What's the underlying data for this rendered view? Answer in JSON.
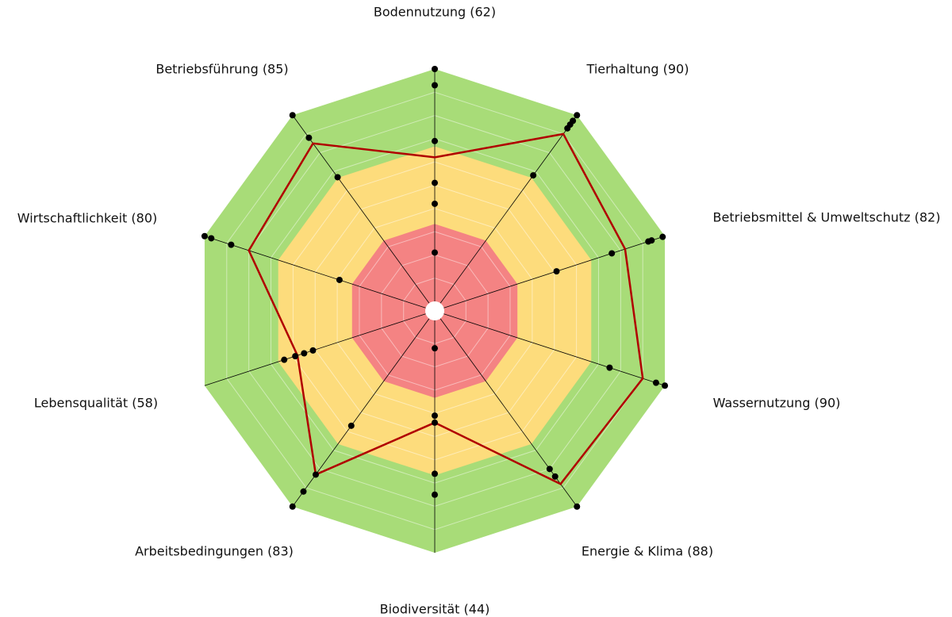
{
  "chart_data": {
    "type": "radar",
    "categories": [
      "Bodennutzung (62)",
      "Tierhaltung (90)",
      "Betriebsmittel & Umweltschutz (82)",
      "Wassernutzung (90)",
      "Energie & Klima (88)",
      "Biodiversität (44)",
      "Arbeitsbedingungen (83)",
      "Lebensqualität (58)",
      "Wirtschaftlichkeit (80)",
      "Betriebsführung (85)"
    ],
    "values": [
      62,
      90,
      82,
      90,
      88,
      44,
      83,
      58,
      80,
      85
    ],
    "color": "#b00000",
    "rlim": [
      0,
      100
    ],
    "grid_values": [
      10,
      20,
      30,
      40,
      50,
      60,
      70,
      80,
      90
    ],
    "zones": [
      {
        "from": 0,
        "to": 33.3,
        "color": "#f48383"
      },
      {
        "from": 33.3,
        "to": 66.7,
        "color": "#fddc7c"
      },
      {
        "from": 66.7,
        "to": 100,
        "color": "#a8dc78"
      }
    ],
    "points": [
      [
        100,
        93,
        69,
        51,
        42,
        21
      ],
      [
        100,
        97,
        95,
        93,
        68
      ],
      [
        99,
        94,
        92.5,
        76,
        51
      ],
      [
        100,
        96,
        75
      ],
      [
        100,
        84,
        80
      ],
      [
        12,
        41,
        44,
        66,
        75
      ],
      [
        100,
        92,
        83,
        57
      ],
      [
        64,
        59,
        55,
        51
      ],
      [
        100,
        97,
        88,
        39
      ],
      [
        100,
        88,
        67
      ]
    ],
    "point_color": "#000000"
  }
}
